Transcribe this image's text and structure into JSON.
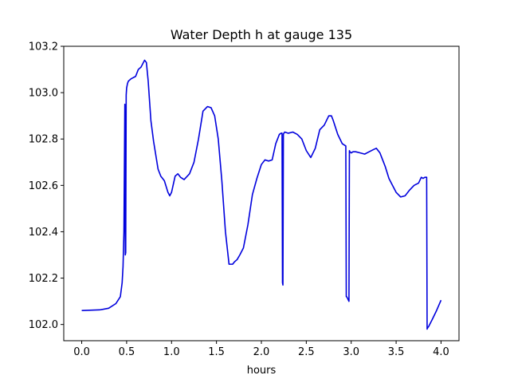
{
  "chart_data": {
    "type": "line",
    "title": "Water Depth h at gauge 135",
    "xlabel": "hours",
    "ylabel": "",
    "xlim": [
      -0.2,
      4.2
    ],
    "ylim": [
      101.93,
      103.2
    ],
    "xticks": [
      0.0,
      0.5,
      1.0,
      1.5,
      2.0,
      2.5,
      3.0,
      3.5,
      4.0
    ],
    "xtick_labels": [
      "0.0",
      "0.5",
      "1.0",
      "1.5",
      "2.0",
      "2.5",
      "3.0",
      "3.5",
      "4.0"
    ],
    "yticks": [
      102.0,
      102.2,
      102.4,
      102.6,
      102.8,
      103.0,
      103.2
    ],
    "ytick_labels": [
      "102.0",
      "102.2",
      "102.4",
      "102.6",
      "102.8",
      "103.0",
      "103.2"
    ],
    "grid": false,
    "series": [
      {
        "color": "#0000dd",
        "x": [
          0.0,
          0.2,
          0.3,
          0.38,
          0.43,
          0.45,
          0.46,
          0.47,
          0.48,
          0.485,
          0.49,
          0.495,
          0.5,
          0.51,
          0.52,
          0.55,
          0.6,
          0.63,
          0.66,
          0.7,
          0.72,
          0.74,
          0.77,
          0.8,
          0.85,
          0.88,
          0.92,
          0.96,
          0.98,
          1.0,
          1.04,
          1.07,
          1.1,
          1.14,
          1.2,
          1.25,
          1.3,
          1.35,
          1.4,
          1.44,
          1.48,
          1.52,
          1.56,
          1.6,
          1.64,
          1.68,
          1.7,
          1.73,
          1.76,
          1.8,
          1.85,
          1.9,
          1.95,
          2.0,
          2.04,
          2.08,
          2.12,
          2.16,
          2.2,
          2.22,
          2.23,
          2.235,
          2.24,
          2.245,
          2.25,
          2.26,
          2.3,
          2.35,
          2.4,
          2.45,
          2.5,
          2.55,
          2.6,
          2.65,
          2.7,
          2.75,
          2.78,
          2.8,
          2.85,
          2.9,
          2.94,
          2.945,
          2.95,
          2.975,
          2.98,
          2.985,
          3.0,
          3.02,
          3.05,
          3.1,
          3.15,
          3.2,
          3.25,
          3.28,
          3.32,
          3.38,
          3.42,
          3.46,
          3.5,
          3.55,
          3.6,
          3.65,
          3.7,
          3.75,
          3.78,
          3.8,
          3.82,
          3.84,
          3.845,
          3.85,
          3.86,
          3.9,
          3.95,
          4.0
        ],
        "y": [
          102.06,
          102.063,
          102.07,
          102.09,
          102.12,
          102.18,
          102.25,
          102.4,
          102.95,
          102.3,
          102.31,
          102.99,
          103.02,
          103.04,
          103.05,
          103.06,
          103.07,
          103.1,
          103.11,
          103.14,
          103.13,
          103.05,
          102.88,
          102.79,
          102.67,
          102.64,
          102.62,
          102.57,
          102.555,
          102.57,
          102.64,
          102.65,
          102.635,
          102.625,
          102.65,
          102.7,
          102.8,
          102.92,
          102.94,
          102.935,
          102.9,
          102.8,
          102.62,
          102.4,
          102.26,
          102.26,
          102.27,
          102.28,
          102.3,
          102.33,
          102.43,
          102.56,
          102.63,
          102.69,
          102.71,
          102.705,
          102.71,
          102.78,
          102.82,
          102.825,
          102.825,
          102.18,
          102.17,
          102.82,
          102.825,
          102.83,
          102.825,
          102.83,
          102.82,
          102.8,
          102.75,
          102.72,
          102.76,
          102.84,
          102.86,
          102.9,
          102.9,
          102.88,
          102.82,
          102.78,
          102.77,
          102.12,
          102.12,
          102.1,
          102.75,
          102.745,
          102.74,
          102.745,
          102.745,
          102.74,
          102.735,
          102.745,
          102.755,
          102.76,
          102.74,
          102.68,
          102.63,
          102.6,
          102.57,
          102.55,
          102.555,
          102.58,
          102.6,
          102.61,
          102.635,
          102.63,
          102.635,
          102.635,
          101.98,
          101.985,
          101.99,
          102.02,
          102.06,
          102.105
        ]
      }
    ]
  }
}
